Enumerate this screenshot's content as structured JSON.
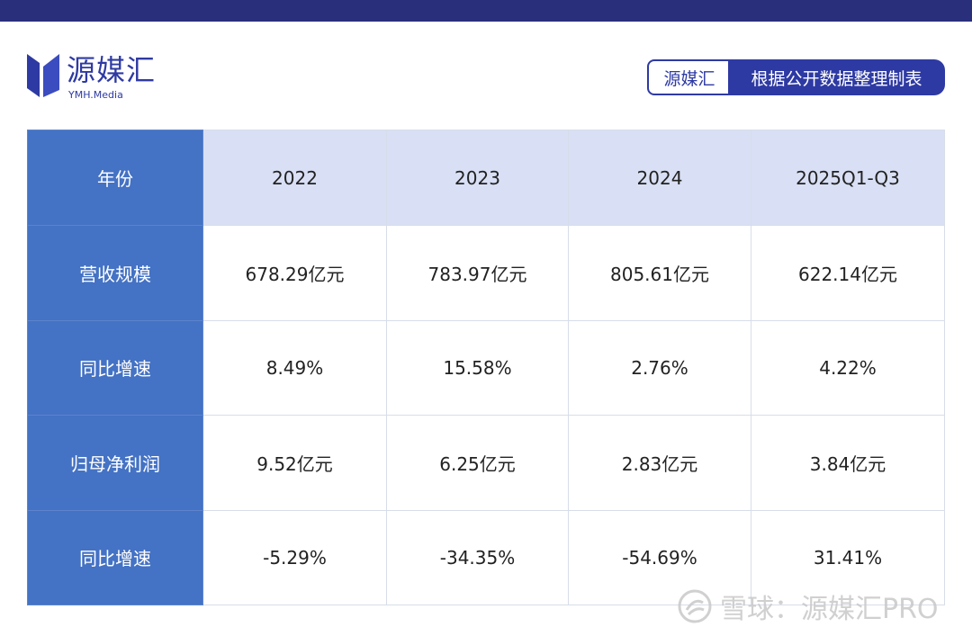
{
  "brand": {
    "name": "源媒汇",
    "sub": "YMH.Media"
  },
  "source_tag": {
    "brand": "源媒汇",
    "text": "根据公开数据整理制表"
  },
  "table": {
    "header": [
      "年份",
      "2022",
      "2023",
      "2024",
      "2025Q1-Q3"
    ],
    "rows": [
      [
        "营收规模",
        "678.29亿元",
        "783.97亿元",
        "805.61亿元",
        "622.14亿元"
      ],
      [
        "同比增速",
        "8.49%",
        "15.58%",
        "2.76%",
        "4.22%"
      ],
      [
        "归母净利润",
        "9.52亿元",
        "6.25亿元",
        "2.83亿元",
        "3.84亿元"
      ],
      [
        "同比增速",
        "-5.29%",
        "-34.35%",
        "-54.69%",
        "31.41%"
      ]
    ]
  },
  "watermark": {
    "text": "雪球：源媒汇PRO",
    "icon": "snowball-icon"
  },
  "colors": {
    "top_bar": "#2a2f7c",
    "brand": "#2e3aa3",
    "row_header": "#4472c4",
    "column_header": "#d9e0f5"
  }
}
